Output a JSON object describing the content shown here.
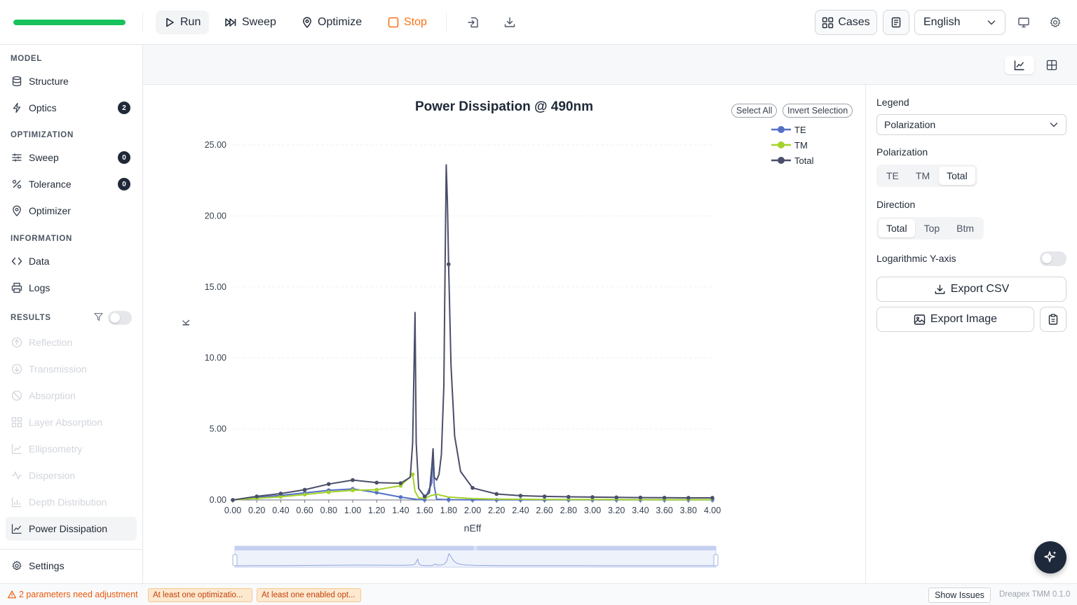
{
  "toolbar": {
    "progress_fraction": 1.0,
    "run_label": "Run",
    "sweep_label": "Sweep",
    "optimize_label": "Optimize",
    "stop_label": "Stop",
    "cases_label": "Cases",
    "language": "English"
  },
  "sidebar": {
    "model_heading": "MODEL",
    "structure": "Structure",
    "optics": "Optics",
    "optics_badge": "2",
    "optimization_heading": "OPTIMIZATION",
    "sweep": "Sweep",
    "sweep_badge": "0",
    "tolerance": "Tolerance",
    "tolerance_badge": "0",
    "optimizer": "Optimizer",
    "information_heading": "INFORMATION",
    "data": "Data",
    "logs": "Logs",
    "results_heading": "RESULTS",
    "results": [
      {
        "label": "Reflection",
        "icon": "arrow-up-circle-icon"
      },
      {
        "label": "Transmission",
        "icon": "arrow-down-circle-icon"
      },
      {
        "label": "Absorption",
        "icon": "ban-icon"
      },
      {
        "label": "Layer Absorption",
        "icon": "grid-icon"
      },
      {
        "label": "Ellipsometry",
        "icon": "line-chart-icon"
      },
      {
        "label": "Dispersion",
        "icon": "activity-icon"
      },
      {
        "label": "Depth Distribution",
        "icon": "bar-chart-icon"
      },
      {
        "label": "Power Dissipation",
        "icon": "line-chart-icon"
      }
    ],
    "settings": "Settings"
  },
  "chart_header": {
    "select_all": "Select All",
    "invert_selection": "Invert Selection"
  },
  "chart_data": {
    "type": "line",
    "title": "Power Dissipation @ 490nm",
    "xlabel": "nEff",
    "ylabel": "K",
    "xlim": [
      0,
      4.0
    ],
    "ylim": [
      0,
      25
    ],
    "x_ticks": [
      "0.00",
      "0.20",
      "0.40",
      "0.60",
      "0.80",
      "1.00",
      "1.20",
      "1.40",
      "1.60",
      "1.80",
      "2.00",
      "2.20",
      "2.40",
      "2.60",
      "2.80",
      "3.00",
      "3.20",
      "3.40",
      "3.60",
      "3.80",
      "4.00"
    ],
    "y_ticks": [
      "0.00",
      "5.00",
      "10.00",
      "15.00",
      "20.00",
      "25.00"
    ],
    "legend_position": "top-right",
    "series": [
      {
        "name": "TE",
        "color": "#5470c6",
        "x": [
          0,
          0.2,
          0.4,
          0.6,
          0.8,
          1.0,
          1.2,
          1.4,
          1.5,
          1.54,
          1.6,
          1.66,
          1.67,
          1.68,
          1.7,
          1.8,
          2.0,
          2.2,
          2.4,
          2.6,
          2.8,
          3.0,
          3.2,
          3.4,
          3.6,
          3.8,
          4.0
        ],
        "y": [
          0,
          0.18,
          0.32,
          0.5,
          0.68,
          0.78,
          0.52,
          0.2,
          0.08,
          0.04,
          0.02,
          1.2,
          3.6,
          1.0,
          0.05,
          0.02,
          0.01,
          0.01,
          0.01,
          0.01,
          0.01,
          0.01,
          0.01,
          0.01,
          0.01,
          0.01,
          0.01
        ],
        "markers": [
          0,
          1,
          2,
          3,
          4,
          5,
          6,
          7,
          10,
          15,
          16,
          17,
          18,
          19,
          20,
          21,
          22,
          23,
          24,
          25,
          26
        ]
      },
      {
        "name": "TM",
        "color": "#a5d22a",
        "x": [
          0,
          0.2,
          0.4,
          0.6,
          0.8,
          1.0,
          1.2,
          1.4,
          1.5,
          1.52,
          1.55,
          1.6,
          1.65,
          1.7,
          1.8,
          2.0,
          2.2,
          2.4,
          2.6,
          2.8,
          3.0,
          3.2,
          3.4,
          3.6,
          3.8,
          4.0
        ],
        "y": [
          0,
          0.12,
          0.22,
          0.38,
          0.55,
          0.68,
          0.72,
          1.0,
          1.8,
          0.6,
          0.15,
          0.1,
          0.3,
          0.4,
          0.2,
          0.1,
          0.06,
          0.05,
          0.04,
          0.03,
          0.03,
          0.03,
          0.02,
          0.02,
          0.02,
          0.02
        ],
        "markers": [
          0,
          1,
          2,
          3,
          4,
          5,
          6,
          7,
          8
        ]
      },
      {
        "name": "Total",
        "color": "#4a4e69",
        "x": [
          0,
          0.2,
          0.4,
          0.6,
          0.8,
          1.0,
          1.2,
          1.4,
          1.48,
          1.5,
          1.52,
          1.53,
          1.55,
          1.6,
          1.64,
          1.66,
          1.67,
          1.68,
          1.7,
          1.72,
          1.74,
          1.76,
          1.77,
          1.78,
          1.79,
          1.8,
          1.82,
          1.85,
          1.9,
          2.0,
          2.2,
          2.4,
          2.6,
          2.8,
          3.0,
          3.2,
          3.4,
          3.6,
          3.8,
          4.0
        ],
        "y": [
          0,
          0.25,
          0.45,
          0.72,
          1.12,
          1.4,
          1.22,
          1.18,
          1.6,
          4.0,
          13.2,
          4.0,
          0.8,
          0.25,
          0.5,
          2.4,
          3.6,
          1.6,
          1.4,
          1.8,
          3.2,
          8.0,
          16.0,
          23.6,
          21.0,
          16.6,
          9.5,
          4.5,
          2.0,
          0.85,
          0.42,
          0.3,
          0.25,
          0.22,
          0.2,
          0.18,
          0.17,
          0.16,
          0.15,
          0.15
        ],
        "markers": [
          0,
          1,
          2,
          3,
          4,
          5,
          6,
          7,
          13,
          25,
          29,
          30,
          31,
          32,
          33,
          34,
          35,
          36,
          37,
          38,
          39
        ]
      }
    ]
  },
  "panel": {
    "legend_label": "Legend",
    "legend_value": "Polarization",
    "polarization_label": "Polarization",
    "polarization_options": [
      "TE",
      "TM",
      "Total"
    ],
    "polarization_selected": "Total",
    "direction_label": "Direction",
    "direction_options": [
      "Total",
      "Top",
      "Btm"
    ],
    "direction_selected": "Total",
    "log_label": "Logarithmic Y-axis",
    "export_csv": "Export CSV",
    "export_image": "Export Image"
  },
  "statusbar": {
    "warning": "2 parameters need adjustment",
    "chip1": "At least one optimizatio...",
    "chip2": "At least one enabled opt...",
    "show_issues": "Show Issues",
    "version": "Dreapex TMM 0.1.0"
  }
}
